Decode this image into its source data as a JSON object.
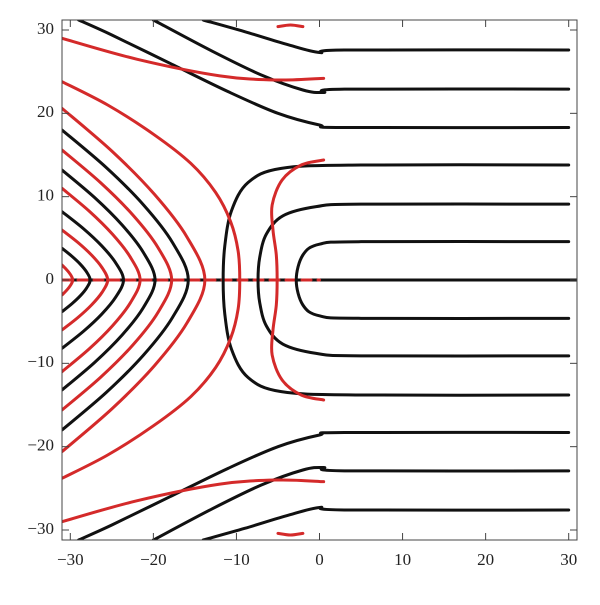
{
  "chart_data": {
    "type": "contour",
    "xlim": [
      -31,
      31
    ],
    "ylim": [
      -31.2,
      31.2
    ],
    "xticks": [
      {
        "value": -30,
        "label": "−30"
      },
      {
        "value": -20,
        "label": "−20"
      },
      {
        "value": -10,
        "label": "−10"
      },
      0,
      10,
      20,
      30
    ],
    "yticks": [
      {
        "value": -30,
        "label": "−30"
      },
      {
        "value": -20,
        "label": "−20"
      },
      {
        "value": -10,
        "label": "−10"
      },
      0,
      10,
      20,
      30
    ],
    "series": [
      {
        "color": "#111111",
        "x": [
          -31,
          31
        ],
        "values": [
          0,
          0
        ]
      },
      {
        "color": "#d42a2a",
        "dashed": true,
        "x": [
          -31,
          0
        ],
        "values": [
          0,
          0
        ]
      },
      {
        "color": "#111111",
        "x": [
          30,
          5,
          0,
          -2,
          -2.8,
          -2,
          0,
          5,
          30
        ],
        "values": [
          4.6,
          4.6,
          4.3,
          3,
          0,
          -3,
          -4.3,
          -4.6,
          -4.6
        ]
      },
      {
        "color": "#d42a2a",
        "x": [
          -31,
          -30.55,
          -30.16,
          -29.86,
          -29.7,
          -29.86,
          -30.16,
          -30.55,
          -31
        ],
        "values": [
          1.8,
          1.35,
          0.9,
          0.45,
          0,
          -0.45,
          -0.9,
          -1.35,
          -1.8
        ]
      },
      {
        "color": "#111111",
        "x": [
          -31,
          -29.81,
          -28.8,
          -28.03,
          -27.6,
          -28.03,
          -28.8,
          -29.81,
          -31
        ],
        "values": [
          3.8,
          2.85,
          1.9,
          0.95,
          0,
          -0.95,
          -1.9,
          -2.85,
          -3.8
        ]
      },
      {
        "color": "#d42a2a",
        "x": [
          -31,
          -29.08,
          -27.45,
          -26.19,
          -25.5,
          -26.19,
          -27.45,
          -29.08,
          -31
        ],
        "values": [
          6,
          4.5,
          3,
          1.5,
          0,
          -1.5,
          -3,
          -4.5,
          -6
        ]
      },
      {
        "color": "#111111",
        "x": [
          -31,
          -28.41,
          -26.22,
          -24.53,
          -23.6,
          -24.53,
          -26.22,
          -28.41,
          -31
        ],
        "values": [
          8.2,
          6.15,
          4.1,
          2.05,
          0,
          -2.05,
          -4.1,
          -6.15,
          -8.2
        ]
      },
      {
        "color": "#d42a2a",
        "x": [
          -31,
          -27.71,
          -24.93,
          -22.78,
          -21.6,
          -22.78,
          -24.93,
          -27.71,
          -31
        ],
        "values": [
          11,
          8.25,
          5.5,
          2.75,
          0,
          -2.75,
          -5.5,
          -8.25,
          -11
        ]
      },
      {
        "color": "#111111",
        "x": [
          -31,
          -27.08,
          -23.76,
          -21.2,
          -19.8,
          -21.2,
          -23.76,
          -27.08,
          -31
        ],
        "values": [
          13.2,
          9.9,
          6.6,
          3.3,
          0,
          -3.3,
          -6.6,
          -9.9,
          -13.2
        ]
      },
      {
        "color": "#d42a2a",
        "x": [
          -31,
          -26.38,
          -22.47,
          -19.45,
          -17.8,
          -19.45,
          -22.47,
          -26.38,
          -31
        ],
        "values": [
          15.6,
          11.7,
          7.8,
          3.9,
          0,
          -3.9,
          -7.8,
          -11.7,
          -15.6
        ]
      },
      {
        "color": "#111111",
        "x": [
          -31,
          -25.68,
          -21.18,
          -17.7,
          -15.8,
          -17.7,
          -21.18,
          -25.68,
          -31
        ],
        "values": [
          18,
          13.5,
          9,
          4.5,
          0,
          -4.5,
          -9,
          -13.5,
          -18
        ]
      },
      {
        "color": "#d42a2a",
        "x": [
          -31,
          -24.98,
          -19.89,
          -15.95,
          -13.8,
          -15.95,
          -19.89,
          -24.98,
          -31
        ],
        "values": [
          20.6,
          15.45,
          10.3,
          5.15,
          0,
          -5.15,
          -10.3,
          -15.45,
          -20.6
        ]
      },
      {
        "color": "#111111",
        "x": [
          30,
          5,
          -4.6,
          -8.6,
          -10.6,
          -11.4,
          -11.6,
          -11.4,
          -10.6,
          -8.6,
          -4.6,
          5,
          30
        ],
        "values": [
          13.8,
          13.8,
          13.4,
          11.7,
          8.3,
          4.1,
          0,
          -4.1,
          -8.3,
          -11.7,
          -13.4,
          -13.8,
          -13.8
        ]
      },
      {
        "color": "#111111",
        "x": [
          30,
          5,
          -0.4,
          -4.4,
          -6.4,
          -7.2,
          -7.4,
          -7.2,
          -6.4,
          -4.4,
          -0.4,
          5,
          30
        ],
        "values": [
          9.1,
          9.1,
          8.8,
          7.7,
          5.5,
          2.7,
          0,
          -2.7,
          -5.5,
          -7.7,
          -8.8,
          -9.1,
          -9.1
        ]
      },
      {
        "color": "#d42a2a",
        "x": [
          -31,
          -25.5,
          -20,
          -15.5,
          -12.5,
          -10.7,
          -9.8,
          -9.6,
          -9.8,
          -10.7,
          -12.5,
          -15.5,
          -20,
          -25.5,
          -31
        ],
        "values": [
          23.8,
          21,
          17.5,
          14,
          10.5,
          7,
          3.5,
          0,
          -3.5,
          -7,
          -10.5,
          -14,
          -17.5,
          -21,
          -23.8
        ]
      },
      {
        "color": "#d42a2a",
        "x": [
          0.5,
          -2.2,
          -4.5,
          -5.7,
          -5.6,
          -5.2,
          -5.1,
          -5.2,
          -5.6,
          -5.7,
          -4.5,
          -2.2,
          0.5
        ],
        "values": [
          14.4,
          13.8,
          12,
          9,
          6,
          3,
          0,
          -3,
          -6,
          -9,
          -12,
          -13.8,
          -14.4
        ]
      },
      {
        "color": "#111111",
        "x": [
          30,
          3,
          0,
          -5,
          -11,
          -18,
          -25,
          -29
        ],
        "values": [
          18.3,
          18.3,
          18.6,
          20,
          22.6,
          26,
          29.4,
          31.2
        ]
      },
      {
        "color": "#111111",
        "x": [
          30,
          3,
          0,
          -5,
          -11,
          -18,
          -25,
          -29
        ],
        "values": [
          -18.3,
          -18.3,
          -18.6,
          -20,
          -22.6,
          -26,
          -29.4,
          -31.2
        ]
      },
      {
        "color": "#111111",
        "x": [
          30,
          3,
          0.5,
          -2,
          -7,
          -13,
          -20
        ],
        "values": [
          22.9,
          22.9,
          22.5,
          22.8,
          24.6,
          27.5,
          31.2
        ]
      },
      {
        "color": "#111111",
        "x": [
          30,
          3,
          0.5,
          -2,
          -7,
          -13,
          -20
        ],
        "values": [
          -22.9,
          -22.9,
          -22.5,
          -22.8,
          -24.6,
          -27.5,
          -31.2
        ]
      },
      {
        "color": "#111111",
        "x": [
          30,
          3,
          0,
          -4,
          -9,
          -14
        ],
        "values": [
          27.6,
          27.6,
          27.3,
          28.3,
          29.8,
          31.2
        ]
      },
      {
        "color": "#111111",
        "x": [
          30,
          3,
          0,
          -4,
          -9,
          -14
        ],
        "values": [
          -27.6,
          -27.6,
          -27.3,
          -28.3,
          -29.8,
          -31.2
        ]
      },
      {
        "color": "#d42a2a",
        "x": [
          -31,
          -22,
          -12,
          -5,
          0.5
        ],
        "values": [
          29,
          26.5,
          24.5,
          24,
          24.2
        ]
      },
      {
        "color": "#d42a2a",
        "x": [
          -31,
          -22,
          -12,
          -5,
          0.5
        ],
        "values": [
          -29,
          -26.5,
          -24.5,
          -24,
          -24.2
        ]
      },
      {
        "color": "#d42a2a",
        "x": [
          -5,
          -3.5,
          -2
        ],
        "values": [
          30.4,
          30.6,
          30.4
        ]
      },
      {
        "color": "#d42a2a",
        "x": [
          -5,
          -3.5,
          -2
        ],
        "values": [
          -30.4,
          -30.6,
          -30.4
        ]
      }
    ]
  }
}
